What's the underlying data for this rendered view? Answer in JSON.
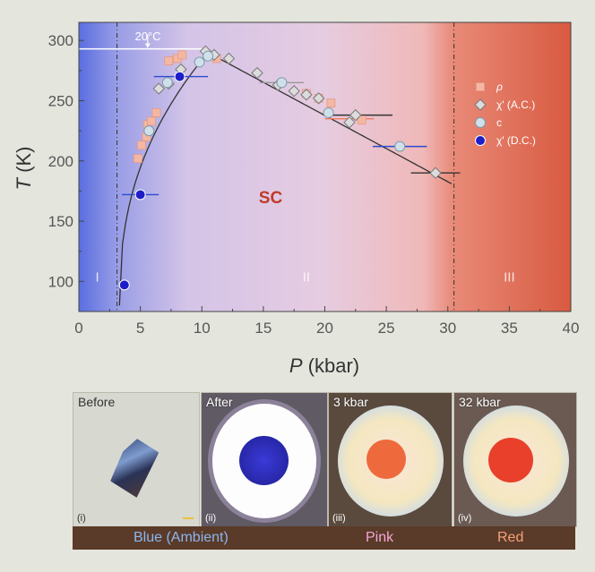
{
  "chart_data": {
    "type": "scatter",
    "xlabel": "P (kbar)",
    "xlabel_italic": "P",
    "xlabel_unit": "(kbar)",
    "ylabel": "T (K)",
    "ylabel_italic": "T",
    "ylabel_unit": "(K)",
    "xlim": [
      0,
      40
    ],
    "ylim": [
      75,
      315
    ],
    "xticks": [
      0,
      5,
      10,
      15,
      20,
      25,
      30,
      35,
      40
    ],
    "yticks": [
      100,
      150,
      200,
      250,
      300
    ],
    "grid": false,
    "legend_position": "top-right",
    "series": [
      {
        "name": "ρ",
        "marker": "square",
        "color": "#f3b8a4",
        "points": [
          [
            4.8,
            202
          ],
          [
            5.1,
            213
          ],
          [
            5.5,
            220
          ],
          [
            5.6,
            230
          ],
          [
            5.9,
            233
          ],
          [
            6.3,
            240
          ],
          [
            7.3,
            283
          ],
          [
            8.0,
            285
          ],
          [
            8.4,
            288
          ],
          [
            11.2,
            285
          ],
          [
            18.5,
            256
          ],
          [
            19.5,
            252
          ],
          [
            20.5,
            248
          ],
          [
            23.0,
            234
          ]
        ]
      },
      {
        "name": "χ' (A.C.)",
        "marker": "diamond",
        "color": "#dcdcdc",
        "points": [
          [
            6.5,
            260
          ],
          [
            7.3,
            264
          ],
          [
            8.3,
            276
          ],
          [
            10.3,
            291
          ],
          [
            11.0,
            288
          ],
          [
            12.2,
            285
          ],
          [
            14.5,
            273
          ],
          [
            16.2,
            263
          ],
          [
            17.5,
            258
          ],
          [
            18.5,
            255
          ],
          [
            19.5,
            252
          ],
          [
            22.0,
            232
          ],
          [
            22.5,
            238
          ],
          [
            29.0,
            190
          ]
        ]
      },
      {
        "name": "c",
        "marker": "circle",
        "color": "#cfe0ea",
        "points": [
          [
            5.7,
            225
          ],
          [
            7.2,
            265
          ],
          [
            9.8,
            282
          ],
          [
            10.5,
            287
          ],
          [
            16.5,
            265
          ],
          [
            20.3,
            240
          ],
          [
            26.1,
            212
          ]
        ]
      },
      {
        "name": "χ' (D.C.)",
        "marker": "filled-circle",
        "color": "#1e1ec8",
        "points": [
          [
            3.7,
            97
          ],
          [
            5.0,
            172
          ],
          [
            8.2,
            270
          ]
        ]
      }
    ],
    "boundary_x": [
      3.1,
      30.5
    ],
    "regions": [
      {
        "label": "I",
        "x": 1.5
      },
      {
        "label": "II",
        "x": 18.5
      },
      {
        "label": "III",
        "x": 35.0
      }
    ],
    "center_label": "SC",
    "annotation": "20°C",
    "annotation_y": 293
  },
  "panels": [
    {
      "label": "Before",
      "index": "(i)"
    },
    {
      "label": "After",
      "index": "(ii)"
    },
    {
      "label": "3 kbar",
      "index": "(iii)"
    },
    {
      "label": "32 kbar",
      "index": "(iv)"
    }
  ],
  "captions": {
    "blue": "Blue (Ambient)",
    "pink": "Pink",
    "red": "Red"
  }
}
